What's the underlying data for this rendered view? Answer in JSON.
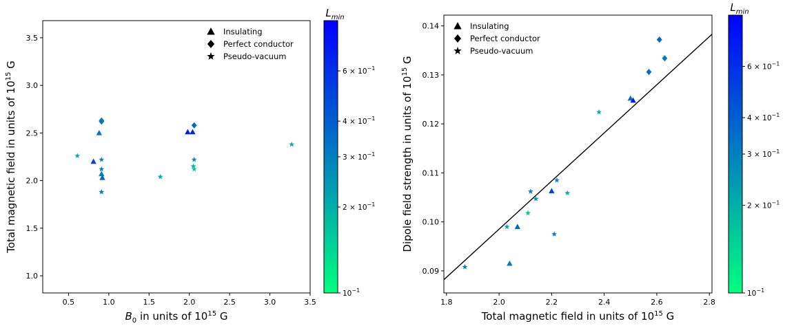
{
  "chart_data": [
    {
      "type": "scatter",
      "xlabel": "$B_0$ in units of $10^{15}$ G",
      "xlabel_parts": {
        "a": "B",
        "a_sub": "0",
        "b": " in units of 10",
        "b_sup": "15",
        "c": " G"
      },
      "ylabel": "Total magnetic field in units of $10^{15}$ G",
      "ylabel_parts": {
        "a": "Total magnetic field in units of 10",
        "a_sup": "15",
        "b": " G"
      },
      "xlim": [
        0.18,
        3.5
      ],
      "ylim": [
        0.82,
        3.68
      ],
      "xticks": [
        "0.5",
        "1.0",
        "1.5",
        "2.0",
        "2.5",
        "3.0",
        "3.5"
      ],
      "yticks": [
        "1.0",
        "1.5",
        "2.0",
        "2.5",
        "3.0",
        "3.5"
      ],
      "legend": {
        "placement": "top-right",
        "entries": [
          {
            "marker": "triangle",
            "label": "Insulating"
          },
          {
            "marker": "diamond",
            "label": "Perfect conductor"
          },
          {
            "marker": "star",
            "label": "Pseudo-vacuum"
          }
        ]
      },
      "color_scale": "log",
      "series": [
        {
          "marker": "triangle",
          "points": [
            {
              "x": 0.88,
              "y": 2.5,
              "c": 0.33
            },
            {
              "x": 0.81,
              "y": 2.2,
              "c": 0.5
            },
            {
              "x": 0.91,
              "y": 2.07,
              "c": 0.3
            },
            {
              "x": 0.92,
              "y": 2.03,
              "c": 0.38
            },
            {
              "x": 1.98,
              "y": 2.51,
              "c": 0.7
            },
            {
              "x": 2.04,
              "y": 2.51,
              "c": 0.65
            }
          ]
        },
        {
          "marker": "diamond",
          "points": [
            {
              "x": 0.91,
              "y": 2.62,
              "c": 0.34
            },
            {
              "x": 0.91,
              "y": 2.63,
              "c": 0.31
            },
            {
              "x": 2.06,
              "y": 2.58,
              "c": 0.36
            }
          ]
        },
        {
          "marker": "star",
          "points": [
            {
              "x": 0.61,
              "y": 2.26,
              "c": 0.2
            },
            {
              "x": 0.91,
              "y": 2.22,
              "c": 0.28
            },
            {
              "x": 0.91,
              "y": 2.12,
              "c": 0.3
            },
            {
              "x": 0.91,
              "y": 1.88,
              "c": 0.31
            },
            {
              "x": 1.64,
              "y": 2.04,
              "c": 0.2
            },
            {
              "x": 2.05,
              "y": 2.15,
              "c": 0.19
            },
            {
              "x": 2.06,
              "y": 2.12,
              "c": 0.16
            },
            {
              "x": 2.06,
              "y": 2.22,
              "c": 0.26
            },
            {
              "x": 3.27,
              "y": 2.38,
              "c": 0.2
            }
          ]
        }
      ],
      "colorbar": {
        "title_base": "L",
        "title_sub": "min",
        "range": [
          0.1,
          0.9
        ],
        "ticks": [
          {
            "value": 0.6,
            "base": "6 × 10",
            "exp": "−1"
          },
          {
            "value": 0.4,
            "base": "4 × 10",
            "exp": "−1"
          },
          {
            "value": 0.3,
            "base": "3 × 10",
            "exp": "−1"
          },
          {
            "value": 0.2,
            "base": "2 × 10",
            "exp": "−1"
          },
          {
            "value": 0.1,
            "base": "10",
            "exp": "−1"
          }
        ],
        "colors": [
          "#00ff80",
          "#0000ff"
        ]
      }
    },
    {
      "type": "scatter",
      "xlabel": "Total magnetic field in units of $10^{15}$ G",
      "xlabel_parts": {
        "a": "Total magnetic field in units of 10",
        "a_sup": "15",
        "b": " G"
      },
      "ylabel": "Dipole field strength in units of $10^{15}$ G",
      "ylabel_parts": {
        "a": "Dipole field strength in units of 10",
        "a_sup": "15",
        "b": " G"
      },
      "xlim": [
        1.79,
        2.81
      ],
      "ylim": [
        0.0855,
        0.1422
      ],
      "xticks": [
        "1.8",
        "2.0",
        "2.2",
        "2.4",
        "2.6",
        "2.8"
      ],
      "yticks": [
        "0.09",
        "0.10",
        "0.11",
        "0.12",
        "0.13",
        "0.14"
      ],
      "legend": {
        "placement": "top-left",
        "entries": [
          {
            "marker": "triangle",
            "label": "Insulating"
          },
          {
            "marker": "diamond",
            "label": "Perfect conductor"
          },
          {
            "marker": "star",
            "label": "Pseudo-vacuum"
          }
        ]
      },
      "color_scale": "log",
      "fit_line": {
        "x": [
          1.79,
          2.81
        ],
        "y": [
          0.0882,
          0.1383
        ]
      },
      "series": [
        {
          "marker": "triangle",
          "points": [
            {
              "x": 2.04,
              "y": 0.0915,
              "c": 0.32
            },
            {
              "x": 2.07,
              "y": 0.099,
              "c": 0.38
            },
            {
              "x": 2.2,
              "y": 0.1063,
              "c": 0.5
            },
            {
              "x": 2.5,
              "y": 0.1252,
              "c": 0.34
            },
            {
              "x": 2.51,
              "y": 0.1248,
              "c": 0.7
            }
          ]
        },
        {
          "marker": "diamond",
          "points": [
            {
              "x": 2.57,
              "y": 0.1306,
              "c": 0.34
            },
            {
              "x": 2.61,
              "y": 0.1372,
              "c": 0.36
            },
            {
              "x": 2.63,
              "y": 0.1334,
              "c": 0.31
            }
          ]
        },
        {
          "marker": "star",
          "points": [
            {
              "x": 1.87,
              "y": 0.0908,
              "c": 0.3
            },
            {
              "x": 2.03,
              "y": 0.099,
              "c": 0.22
            },
            {
              "x": 2.11,
              "y": 0.1018,
              "c": 0.16
            },
            {
              "x": 2.12,
              "y": 0.1062,
              "c": 0.3
            },
            {
              "x": 2.14,
              "y": 0.1047,
              "c": 0.25
            },
            {
              "x": 2.21,
              "y": 0.0975,
              "c": 0.3
            },
            {
              "x": 2.22,
              "y": 0.1085,
              "c": 0.28
            },
            {
              "x": 2.26,
              "y": 0.1059,
              "c": 0.2
            },
            {
              "x": 2.38,
              "y": 0.1224,
              "c": 0.2
            }
          ]
        }
      ],
      "colorbar": {
        "title_base": "L",
        "title_sub": "min",
        "range": [
          0.1,
          0.9
        ],
        "ticks": [
          {
            "value": 0.6,
            "base": "6 × 10",
            "exp": "−1"
          },
          {
            "value": 0.4,
            "base": "4 × 10",
            "exp": "−1"
          },
          {
            "value": 0.3,
            "base": "3 × 10",
            "exp": "−1"
          },
          {
            "value": 0.2,
            "base": "2 × 10",
            "exp": "−1"
          },
          {
            "value": 0.1,
            "base": "10",
            "exp": "−1"
          }
        ],
        "colors": [
          "#00ff80",
          "#0000ff"
        ]
      }
    }
  ]
}
